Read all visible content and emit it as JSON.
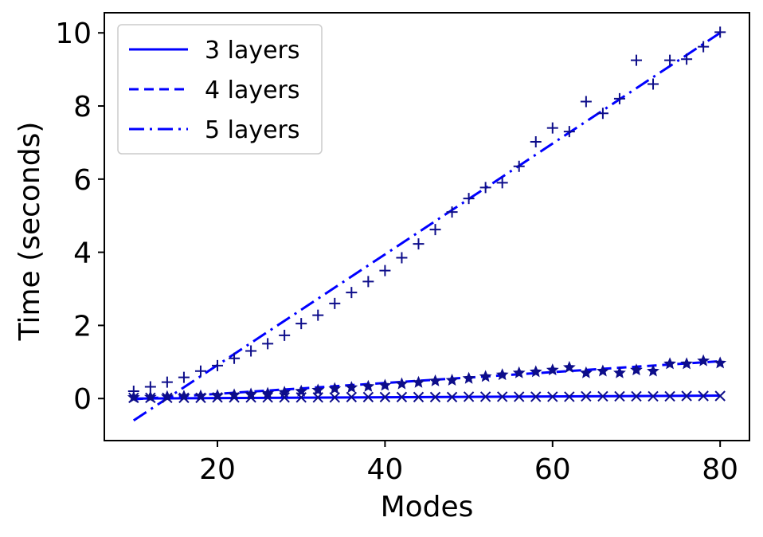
{
  "chart_data": {
    "type": "line",
    "xlabel": "Modes",
    "ylabel": "Time (seconds)",
    "xlim": [
      6.5,
      83.5
    ],
    "ylim": [
      -1.15,
      10.55
    ],
    "xticks": [
      20,
      40,
      60,
      80
    ],
    "yticks": [
      0,
      2,
      4,
      6,
      8,
      10
    ],
    "grid": false,
    "legend_position": "top-left",
    "colors": {
      "line": "#0000ff",
      "markers": "#0d0d8a",
      "axes": "#000000",
      "legend_frame": "#cccccc"
    },
    "series": [
      {
        "name": "3 layers",
        "line_style": "solid",
        "marker": "x",
        "x": [
          10,
          12,
          14,
          16,
          18,
          20,
          22,
          24,
          26,
          28,
          30,
          32,
          34,
          36,
          38,
          40,
          42,
          44,
          46,
          48,
          50,
          52,
          54,
          56,
          58,
          60,
          62,
          64,
          66,
          68,
          70,
          72,
          74,
          76,
          78,
          80
        ],
        "points": [
          0.02,
          0.02,
          0.02,
          0.02,
          0.02,
          0.03,
          0.03,
          0.03,
          0.03,
          0.03,
          0.03,
          0.03,
          0.03,
          0.04,
          0.04,
          0.04,
          0.04,
          0.04,
          0.04,
          0.04,
          0.05,
          0.05,
          0.05,
          0.05,
          0.05,
          0.05,
          0.05,
          0.06,
          0.06,
          0.06,
          0.06,
          0.06,
          0.06,
          0.07,
          0.07,
          0.07
        ],
        "fit": [
          0.0,
          0.08
        ]
      },
      {
        "name": "4 layers",
        "line_style": "dashed",
        "marker": "star",
        "x": [
          10,
          12,
          14,
          16,
          18,
          20,
          22,
          24,
          26,
          28,
          30,
          32,
          34,
          36,
          38,
          40,
          42,
          44,
          46,
          48,
          50,
          52,
          54,
          56,
          58,
          60,
          62,
          64,
          66,
          68,
          70,
          72,
          74,
          76,
          78,
          80
        ],
        "points": [
          0.03,
          0.04,
          0.05,
          0.06,
          0.07,
          0.08,
          0.1,
          0.12,
          0.14,
          0.17,
          0.2,
          0.23,
          0.27,
          0.3,
          0.33,
          0.36,
          0.4,
          0.44,
          0.48,
          0.5,
          0.55,
          0.6,
          0.65,
          0.7,
          0.73,
          0.78,
          0.85,
          0.7,
          0.75,
          0.7,
          0.78,
          0.75,
          0.95,
          0.95,
          1.03,
          0.97
        ],
        "fit": [
          -0.02,
          1.02
        ]
      },
      {
        "name": "5 layers",
        "line_style": "dashdot",
        "marker": "plus",
        "x": [
          10,
          12,
          14,
          16,
          18,
          20,
          22,
          24,
          26,
          28,
          30,
          32,
          34,
          36,
          38,
          40,
          42,
          44,
          46,
          48,
          50,
          52,
          54,
          56,
          58,
          60,
          62,
          64,
          66,
          68,
          70,
          72,
          74,
          76,
          78,
          80
        ],
        "points": [
          0.2,
          0.32,
          0.45,
          0.58,
          0.75,
          0.9,
          1.1,
          1.3,
          1.5,
          1.73,
          2.05,
          2.28,
          2.6,
          2.9,
          3.2,
          3.5,
          3.85,
          4.23,
          4.62,
          5.1,
          5.47,
          5.77,
          5.9,
          6.35,
          7.02,
          7.4,
          7.3,
          8.12,
          7.8,
          8.2,
          9.25,
          8.6,
          9.25,
          9.28,
          9.62,
          10.02
        ],
        "fit": [
          -0.6,
          10.0
        ]
      }
    ]
  }
}
